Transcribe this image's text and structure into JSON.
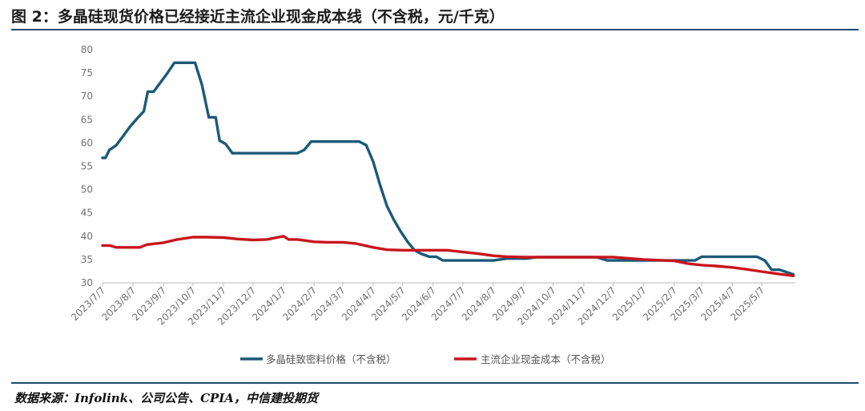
{
  "title": "图 2：多晶硅现货价格已经接近主流企业现金成本线（不含税，元/千克）",
  "source": "数据来源：Infolink、公司公告、CPIA，中信建投期货",
  "chart_data": {
    "type": "line",
    "title": "",
    "xlabel": "",
    "ylabel": "",
    "ylim": [
      30,
      80
    ],
    "yticks": [
      30,
      35,
      40,
      45,
      50,
      55,
      60,
      65,
      70,
      75,
      80
    ],
    "grid": false,
    "legend_position": "bottom",
    "x_start": "2023-07-07",
    "x_end": "2025-06-10",
    "xticks": [
      "2023/7/7",
      "2023/8/7",
      "2023/9/7",
      "2023/10/7",
      "2023/11/7",
      "2023/12/7",
      "2024/1/7",
      "2024/2/7",
      "2024/3/7",
      "2024/4/7",
      "2024/5/7",
      "2024/6/7",
      "2024/7/7",
      "2024/8/7",
      "2024/9/7",
      "2024/10/7",
      "2024/11/7",
      "2024/12/7",
      "2025/1/7",
      "2025/2/7",
      "2025/3/7",
      "2025/4/7",
      "2025/5/7"
    ],
    "series": [
      {
        "name": "多晶硅致密料价格（不含税）",
        "color": "#1b5a78",
        "points": [
          [
            "2023-07-07",
            56.8
          ],
          [
            "2023-07-10",
            56.8
          ],
          [
            "2023-07-14",
            58.5
          ],
          [
            "2023-07-21",
            59.5
          ],
          [
            "2023-07-28",
            61.5
          ],
          [
            "2023-08-04",
            63.5
          ],
          [
            "2023-08-11",
            65.2
          ],
          [
            "2023-08-18",
            66.8
          ],
          [
            "2023-08-22",
            71.0
          ],
          [
            "2023-08-28",
            71.0
          ],
          [
            "2023-09-04",
            73.0
          ],
          [
            "2023-09-11",
            75.0
          ],
          [
            "2023-09-18",
            77.2
          ],
          [
            "2023-09-25",
            77.2
          ],
          [
            "2023-10-02",
            77.2
          ],
          [
            "2023-10-09",
            77.2
          ],
          [
            "2023-10-16",
            72.5
          ],
          [
            "2023-10-23",
            65.5
          ],
          [
            "2023-10-30",
            65.5
          ],
          [
            "2023-11-03",
            60.5
          ],
          [
            "2023-11-09",
            59.8
          ],
          [
            "2023-11-16",
            57.8
          ],
          [
            "2023-11-23",
            57.8
          ],
          [
            "2023-12-07",
            57.8
          ],
          [
            "2023-12-21",
            57.8
          ],
          [
            "2024-01-07",
            57.8
          ],
          [
            "2024-01-21",
            57.8
          ],
          [
            "2024-01-28",
            58.5
          ],
          [
            "2024-02-04",
            60.3
          ],
          [
            "2024-02-15",
            60.3
          ],
          [
            "2024-03-01",
            60.3
          ],
          [
            "2024-03-15",
            60.3
          ],
          [
            "2024-03-24",
            60.3
          ],
          [
            "2024-03-31",
            59.5
          ],
          [
            "2024-04-07",
            56.0
          ],
          [
            "2024-04-14",
            51.0
          ],
          [
            "2024-04-21",
            46.5
          ],
          [
            "2024-04-28",
            43.5
          ],
          [
            "2024-05-05",
            41.0
          ],
          [
            "2024-05-12",
            38.8
          ],
          [
            "2024-05-19",
            37.0
          ],
          [
            "2024-05-26",
            36.2
          ],
          [
            "2024-06-03",
            35.6
          ],
          [
            "2024-06-10",
            35.6
          ],
          [
            "2024-06-17",
            34.8
          ],
          [
            "2024-07-07",
            34.8
          ],
          [
            "2024-08-07",
            34.8
          ],
          [
            "2024-08-21",
            35.2
          ],
          [
            "2024-09-10",
            35.2
          ],
          [
            "2024-09-20",
            35.5
          ],
          [
            "2024-10-07",
            35.5
          ],
          [
            "2024-11-07",
            35.5
          ],
          [
            "2024-11-20",
            35.5
          ],
          [
            "2024-12-01",
            34.8
          ],
          [
            "2024-12-15",
            34.8
          ],
          [
            "2025-01-07",
            34.8
          ],
          [
            "2025-02-07",
            34.8
          ],
          [
            "2025-02-28",
            34.8
          ],
          [
            "2025-03-07",
            35.6
          ],
          [
            "2025-03-20",
            35.6
          ],
          [
            "2025-04-07",
            35.6
          ],
          [
            "2025-04-20",
            35.6
          ],
          [
            "2025-05-02",
            35.6
          ],
          [
            "2025-05-10",
            34.8
          ],
          [
            "2025-05-17",
            32.8
          ],
          [
            "2025-05-25",
            32.8
          ],
          [
            "2025-06-01",
            32.3
          ],
          [
            "2025-06-08",
            31.8
          ]
        ]
      },
      {
        "name": "主流企业现金成本（不含税）",
        "color": "#c8161d",
        "points": [
          [
            "2023-07-07",
            38.0
          ],
          [
            "2023-07-14",
            38.0
          ],
          [
            "2023-07-21",
            37.6
          ],
          [
            "2023-08-07",
            37.6
          ],
          [
            "2023-08-14",
            37.6
          ],
          [
            "2023-08-21",
            38.2
          ],
          [
            "2023-09-07",
            38.6
          ],
          [
            "2023-09-21",
            39.3
          ],
          [
            "2023-10-07",
            39.8
          ],
          [
            "2023-10-21",
            39.8
          ],
          [
            "2023-11-07",
            39.7
          ],
          [
            "2023-11-21",
            39.4
          ],
          [
            "2023-12-07",
            39.2
          ],
          [
            "2023-12-21",
            39.3
          ],
          [
            "2023-12-31",
            39.7
          ],
          [
            "2024-01-07",
            40.0
          ],
          [
            "2024-01-12",
            39.3
          ],
          [
            "2024-01-21",
            39.3
          ],
          [
            "2024-02-07",
            38.8
          ],
          [
            "2024-02-21",
            38.7
          ],
          [
            "2024-03-07",
            38.7
          ],
          [
            "2024-03-21",
            38.4
          ],
          [
            "2024-04-07",
            37.6
          ],
          [
            "2024-04-21",
            37.1
          ],
          [
            "2024-05-07",
            37.0
          ],
          [
            "2024-05-21",
            37.0
          ],
          [
            "2024-06-07",
            37.0
          ],
          [
            "2024-06-21",
            37.0
          ],
          [
            "2024-07-07",
            36.6
          ],
          [
            "2024-07-21",
            36.3
          ],
          [
            "2024-08-07",
            35.8
          ],
          [
            "2024-08-21",
            35.6
          ],
          [
            "2024-09-07",
            35.5
          ],
          [
            "2024-10-07",
            35.5
          ],
          [
            "2024-11-07",
            35.5
          ],
          [
            "2024-12-07",
            35.5
          ],
          [
            "2025-01-07",
            35.0
          ],
          [
            "2025-02-07",
            34.7
          ],
          [
            "2025-02-21",
            34.1
          ],
          [
            "2025-03-07",
            33.8
          ],
          [
            "2025-03-21",
            33.6
          ],
          [
            "2025-04-07",
            33.3
          ],
          [
            "2025-04-21",
            32.9
          ],
          [
            "2025-05-07",
            32.4
          ],
          [
            "2025-05-21",
            32.0
          ],
          [
            "2025-06-08",
            31.5
          ]
        ]
      }
    ]
  }
}
